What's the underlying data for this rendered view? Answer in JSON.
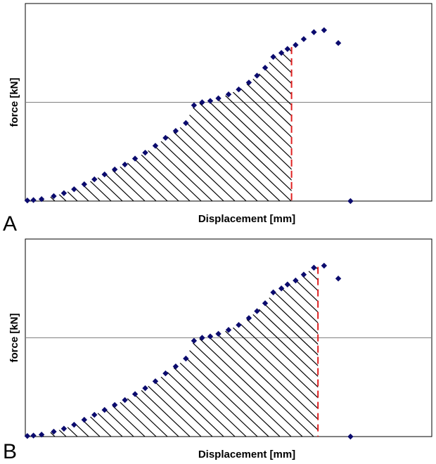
{
  "colors": {
    "marker": "#0b0b6e",
    "hatch": "#000000",
    "cutoff": "#e02020",
    "gridline": "#808080",
    "frame": "#000000"
  },
  "chart_data": [
    {
      "type": "scatter",
      "panel_label": "A",
      "xlabel": "Displacement [mm]",
      "ylabel": "force [kN]",
      "xlim": [
        0,
        100
      ],
      "ylim": [
        0,
        100
      ],
      "grid_y": [
        50
      ],
      "cutoff_x": 65.5,
      "hatched_area": "under curve from x=0 to cutoff_x",
      "x": [
        0.5,
        2,
        4,
        7,
        9.5,
        12,
        14.5,
        17,
        19.5,
        22,
        24.5,
        27,
        29.5,
        32,
        34.5,
        37,
        39.5,
        41.5,
        43.5,
        45.5,
        47.5,
        50,
        52.5,
        55,
        57,
        59,
        61,
        63,
        64.5,
        66.5,
        68.5,
        71,
        73.5
      ],
      "y": [
        0.3,
        0.5,
        1,
        2.5,
        4,
        6,
        8.5,
        11,
        13.5,
        16,
        18.5,
        21.5,
        24.5,
        28,
        32,
        35.5,
        39.5,
        48.5,
        50,
        50.7,
        52,
        54,
        56.5,
        60,
        63.5,
        67.5,
        73,
        75,
        77,
        79,
        82,
        85.5,
        86.5
      ],
      "extra_points": [
        {
          "x": 77,
          "y": 80
        },
        {
          "x": 80,
          "y": 0
        }
      ]
    },
    {
      "type": "scatter",
      "panel_label": "B",
      "xlabel": "Displacement [mm]",
      "ylabel": "force [kN]",
      "xlim": [
        0,
        100
      ],
      "ylim": [
        0,
        100
      ],
      "grid_y": [
        50
      ],
      "cutoff_x": 72,
      "hatched_area": "under curve from x=0 to cutoff_x",
      "x": [
        0.5,
        2,
        4,
        7,
        9.5,
        12,
        14.5,
        17,
        19.5,
        22,
        24.5,
        27,
        29.5,
        32,
        34.5,
        37,
        39.5,
        41.5,
        43.5,
        45.5,
        47.5,
        50,
        52.5,
        55,
        57,
        59,
        61,
        63,
        64.5,
        66.5,
        68.5,
        71,
        73.5
      ],
      "y": [
        0.3,
        0.5,
        1,
        2.5,
        4,
        6,
        8.5,
        11,
        13.5,
        16,
        18.5,
        21.5,
        24.5,
        28,
        32,
        35.5,
        39.5,
        48.5,
        50,
        50.7,
        52,
        54,
        56.5,
        60,
        63.5,
        67.5,
        73,
        75,
        77,
        79,
        82,
        85.5,
        86.5
      ],
      "extra_points": [
        {
          "x": 77,
          "y": 80
        },
        {
          "x": 80,
          "y": 0
        }
      ]
    }
  ]
}
